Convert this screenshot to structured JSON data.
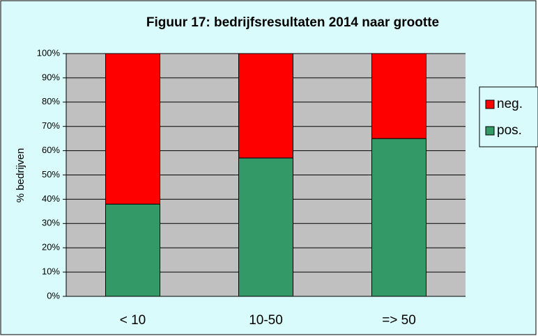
{
  "chart_data": {
    "type": "stacked_bar",
    "title": "Figuur 17: bedrijfsresultaten 2014 naar grootte",
    "y_label": "% bedrijven",
    "categories": [
      "< 10",
      "10-50",
      "=> 50"
    ],
    "series": [
      {
        "name": "pos.",
        "color": "#339966",
        "values": [
          38,
          57,
          65
        ]
      },
      {
        "name": "neg.",
        "color": "#ff0000",
        "values": [
          62,
          43,
          35
        ]
      }
    ],
    "ylim": [
      0,
      100
    ],
    "yticks": [
      {
        "value": 0,
        "label": "0%"
      },
      {
        "value": 10,
        "label": "10%"
      },
      {
        "value": 20,
        "label": "20%"
      },
      {
        "value": 30,
        "label": "30%"
      },
      {
        "value": 40,
        "label": "40%"
      },
      {
        "value": 50,
        "label": "50%"
      },
      {
        "value": 60,
        "label": "60%"
      },
      {
        "value": 70,
        "label": "70%"
      },
      {
        "value": 80,
        "label": "80%"
      },
      {
        "value": 90,
        "label": "90%"
      },
      {
        "value": 100,
        "label": "100%"
      }
    ],
    "grid": true,
    "legend": "right"
  }
}
